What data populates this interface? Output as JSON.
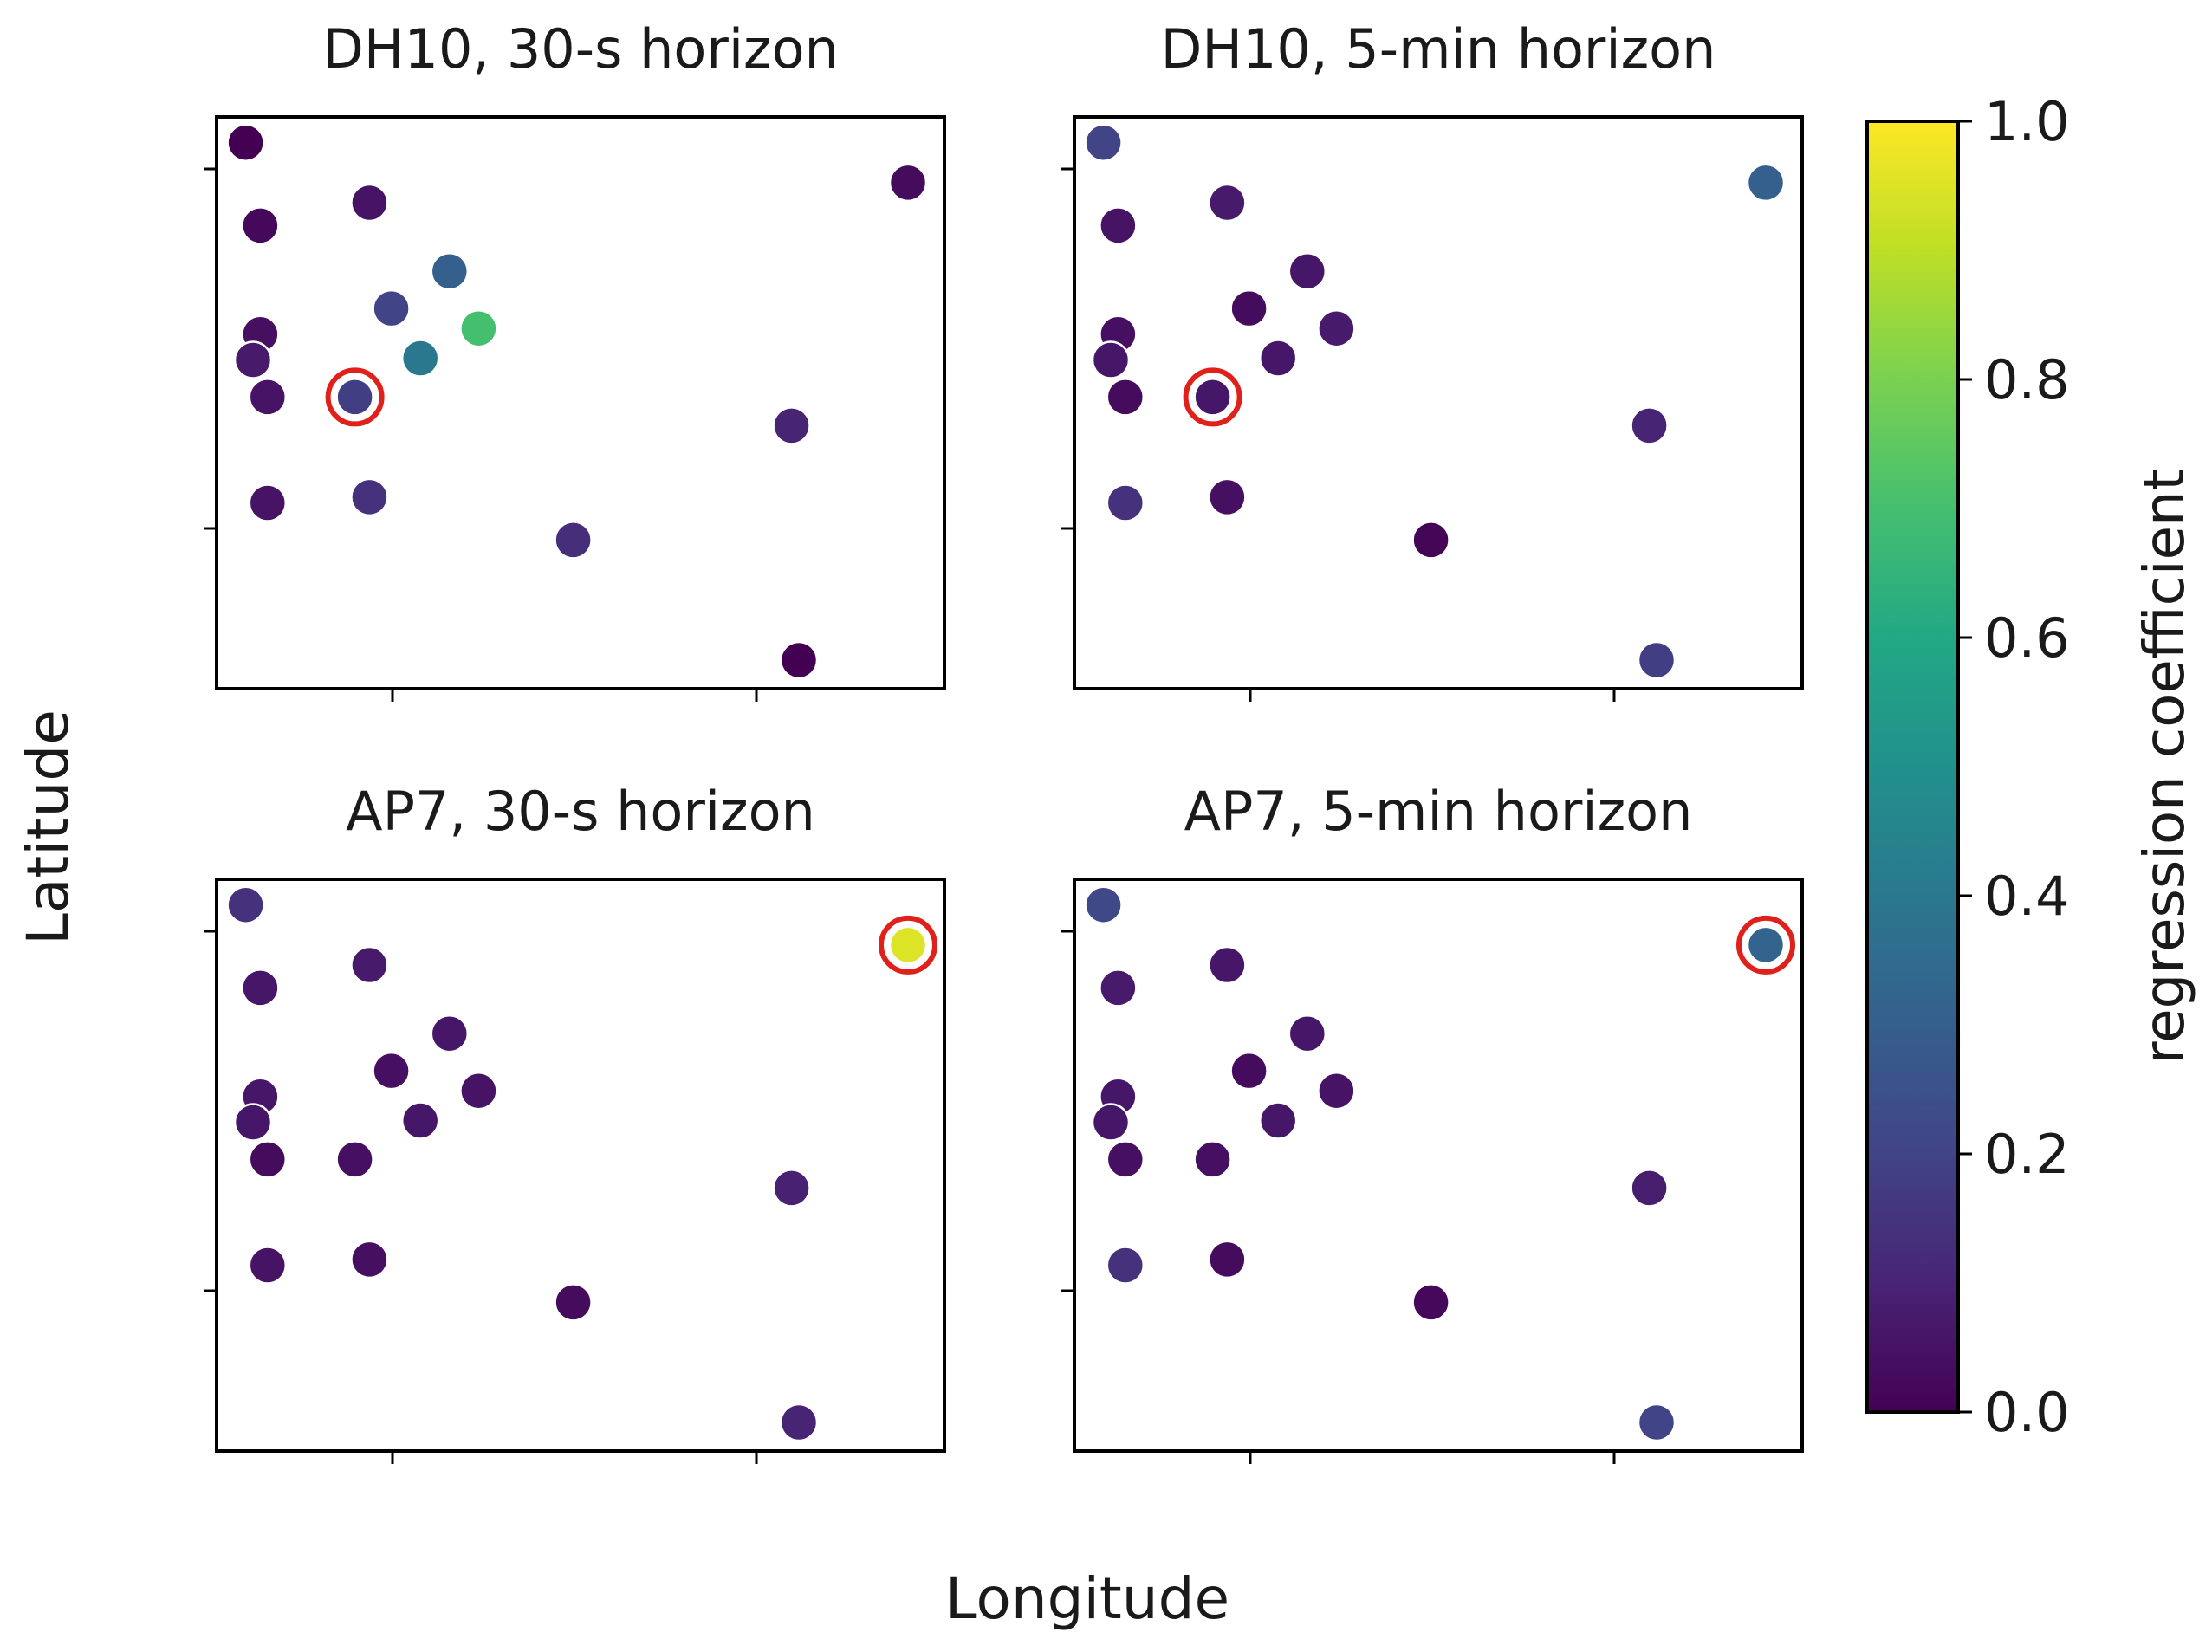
{
  "figure": {
    "xlabel": "Longitude",
    "ylabel": "Latitude",
    "colorbar": {
      "label": "regression coefficient",
      "min": 0.0,
      "max": 1.0,
      "ticks": [
        "0.0",
        "0.2",
        "0.4",
        "0.6",
        "0.8",
        "1.0"
      ]
    }
  },
  "chart_data": [
    {
      "type": "scatter",
      "title": "DH10, 30-s horizon",
      "xlabel": "Longitude",
      "ylabel": "Latitude",
      "xlim": [
        0.0,
        1.0
      ],
      "ylim": [
        0.0,
        1.0
      ],
      "x": [
        0.04,
        0.06,
        0.21,
        0.95,
        0.06,
        0.32,
        0.24,
        0.36,
        0.28,
        0.05,
        0.07,
        0.19,
        0.79,
        0.07,
        0.21,
        0.49,
        0.8
      ],
      "y": [
        0.955,
        0.81,
        0.85,
        0.885,
        0.62,
        0.73,
        0.665,
        0.63,
        0.578,
        0.575,
        0.51,
        0.51,
        0.46,
        0.325,
        0.335,
        0.26,
        0.05
      ],
      "values": [
        0.0,
        0.02,
        0.05,
        0.03,
        0.04,
        0.3,
        0.2,
        0.7,
        0.4,
        0.07,
        0.05,
        0.18,
        0.1,
        0.05,
        0.14,
        0.13,
        0.0
      ],
      "highlight_index": 11
    },
    {
      "type": "scatter",
      "title": "DH10, 5-min horizon",
      "xlabel": "Longitude",
      "ylabel": "Latitude",
      "xlim": [
        0.0,
        1.0
      ],
      "ylim": [
        0.0,
        1.0
      ],
      "x": [
        0.04,
        0.06,
        0.21,
        0.95,
        0.06,
        0.32,
        0.24,
        0.36,
        0.28,
        0.05,
        0.07,
        0.19,
        0.79,
        0.07,
        0.21,
        0.49,
        0.8
      ],
      "y": [
        0.955,
        0.81,
        0.85,
        0.885,
        0.62,
        0.73,
        0.665,
        0.63,
        0.578,
        0.575,
        0.51,
        0.51,
        0.46,
        0.325,
        0.335,
        0.26,
        0.05
      ],
      "values": [
        0.2,
        0.05,
        0.07,
        0.3,
        0.04,
        0.06,
        0.03,
        0.07,
        0.06,
        0.06,
        0.03,
        0.06,
        0.1,
        0.14,
        0.04,
        0.01,
        0.18
      ],
      "highlight_index": 11
    },
    {
      "type": "scatter",
      "title": "AP7, 30-s horizon",
      "xlabel": "Longitude",
      "ylabel": "Latitude",
      "xlim": [
        0.0,
        1.0
      ],
      "ylim": [
        0.0,
        1.0
      ],
      "x": [
        0.04,
        0.06,
        0.21,
        0.95,
        0.06,
        0.32,
        0.24,
        0.36,
        0.28,
        0.05,
        0.07,
        0.19,
        0.79,
        0.07,
        0.21,
        0.49,
        0.8
      ],
      "y": [
        0.955,
        0.81,
        0.85,
        0.885,
        0.62,
        0.73,
        0.665,
        0.63,
        0.578,
        0.575,
        0.51,
        0.51,
        0.46,
        0.325,
        0.335,
        0.26,
        0.05
      ],
      "values": [
        0.14,
        0.06,
        0.07,
        0.95,
        0.06,
        0.06,
        0.04,
        0.05,
        0.06,
        0.06,
        0.03,
        0.04,
        0.09,
        0.05,
        0.04,
        0.03,
        0.1
      ],
      "highlight_index": 3
    },
    {
      "type": "scatter",
      "title": "AP7, 5-min horizon",
      "xlabel": "Longitude",
      "ylabel": "Latitude",
      "xlim": [
        0.0,
        1.0
      ],
      "ylim": [
        0.0,
        1.0
      ],
      "x": [
        0.04,
        0.06,
        0.21,
        0.95,
        0.06,
        0.32,
        0.24,
        0.36,
        0.28,
        0.05,
        0.07,
        0.19,
        0.79,
        0.07,
        0.21,
        0.49,
        0.8
      ],
      "y": [
        0.955,
        0.81,
        0.85,
        0.885,
        0.62,
        0.73,
        0.665,
        0.63,
        0.578,
        0.575,
        0.51,
        0.51,
        0.46,
        0.325,
        0.335,
        0.26,
        0.05
      ],
      "values": [
        0.22,
        0.07,
        0.06,
        0.32,
        0.06,
        0.06,
        0.03,
        0.05,
        0.06,
        0.06,
        0.04,
        0.04,
        0.08,
        0.14,
        0.03,
        0.02,
        0.2
      ],
      "highlight_index": 3
    }
  ],
  "colors": {
    "axis": "#000000",
    "highlight_ring": "#e0201b",
    "point_edge": "#ffffff"
  }
}
